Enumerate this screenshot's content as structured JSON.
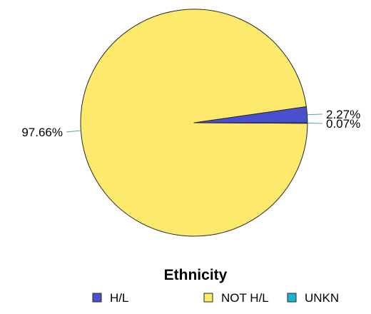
{
  "chart_data": {
    "type": "pie",
    "categories": [
      "H/L",
      "NOT H/L",
      "UNKN"
    ],
    "values": [
      2.27,
      97.66,
      0.07
    ],
    "value_labels": [
      "2.27%",
      "97.66%",
      "0.07%"
    ],
    "colors": [
      "#4a4fce",
      "#fde96c",
      "#1ab3cf"
    ],
    "legend_title": "Ethnicity",
    "legend_position": "bottom"
  }
}
